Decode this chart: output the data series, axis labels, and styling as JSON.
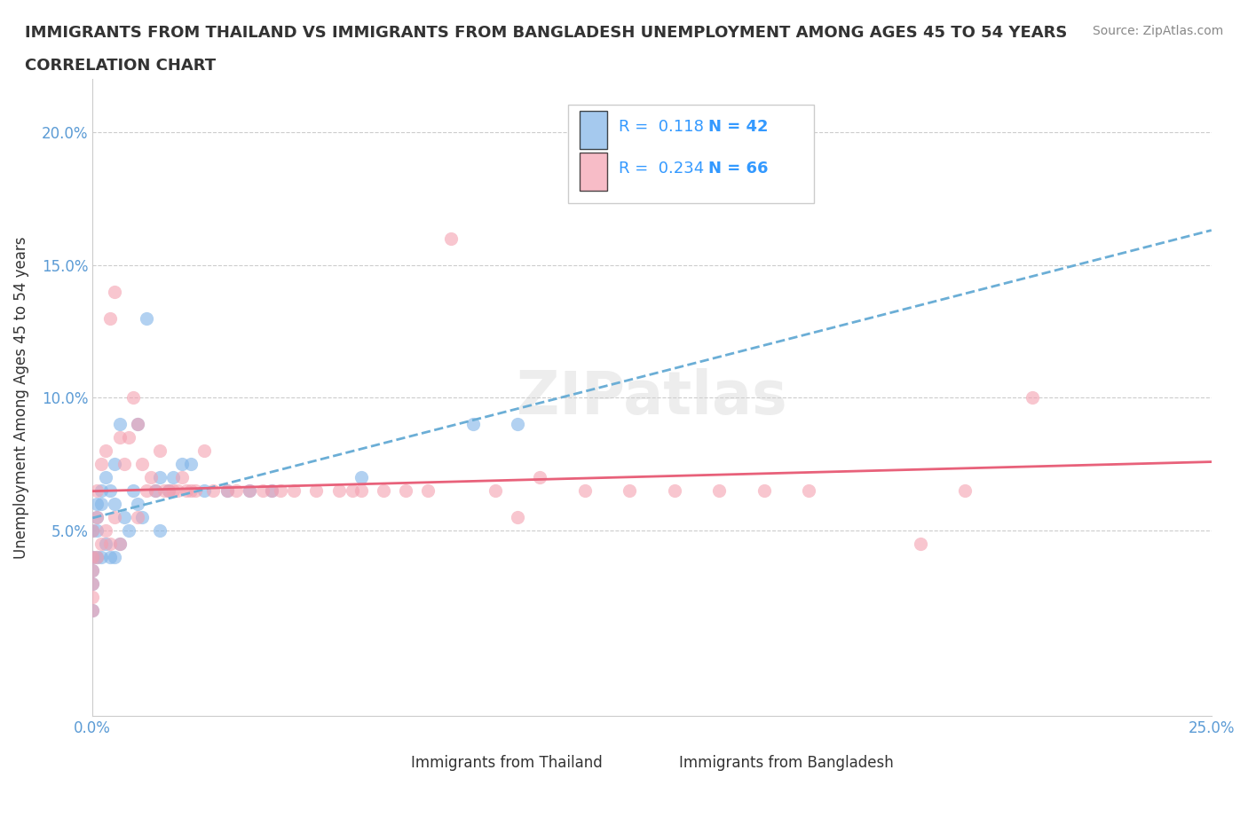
{
  "title_line1": "IMMIGRANTS FROM THAILAND VS IMMIGRANTS FROM BANGLADESH UNEMPLOYMENT AMONG AGES 45 TO 54 YEARS",
  "title_line2": "CORRELATION CHART",
  "source_text": "Source: ZipAtlas.com",
  "ylabel": "Unemployment Among Ages 45 to 54 years",
  "xlim": [
    0.0,
    0.25
  ],
  "ylim": [
    -0.02,
    0.22
  ],
  "xticks": [
    0.0,
    0.05,
    0.1,
    0.15,
    0.2,
    0.25
  ],
  "xticklabels": [
    "0.0%",
    "",
    "",
    "",
    "",
    "25.0%"
  ],
  "yticks": [
    0.0,
    0.05,
    0.1,
    0.15,
    0.2
  ],
  "yticklabels": [
    "",
    "5.0%",
    "10.0%",
    "15.0%",
    "20.0%"
  ],
  "grid_color": "#cccccc",
  "watermark": "ZIPatlas",
  "thailand_color": "#7fb3e8",
  "bangladesh_color": "#f4a0b0",
  "thailand_R": 0.118,
  "thailand_N": 42,
  "bangladesh_R": 0.234,
  "bangladesh_N": 66,
  "legend_R_color": "#3399ff",
  "legend_N_color": "#3399ff",
  "thailand_x": [
    0.0,
    0.0,
    0.0,
    0.0,
    0.0,
    0.001,
    0.001,
    0.001,
    0.001,
    0.002,
    0.002,
    0.002,
    0.003,
    0.003,
    0.004,
    0.004,
    0.005,
    0.005,
    0.005,
    0.006,
    0.006,
    0.007,
    0.008,
    0.009,
    0.01,
    0.01,
    0.011,
    0.012,
    0.014,
    0.015,
    0.015,
    0.017,
    0.018,
    0.02,
    0.022,
    0.025,
    0.03,
    0.035,
    0.04,
    0.06,
    0.085,
    0.095
  ],
  "thailand_y": [
    0.05,
    0.04,
    0.035,
    0.03,
    0.02,
    0.06,
    0.055,
    0.05,
    0.04,
    0.065,
    0.06,
    0.04,
    0.07,
    0.045,
    0.065,
    0.04,
    0.075,
    0.06,
    0.04,
    0.09,
    0.045,
    0.055,
    0.05,
    0.065,
    0.09,
    0.06,
    0.055,
    0.13,
    0.065,
    0.07,
    0.05,
    0.065,
    0.07,
    0.075,
    0.075,
    0.065,
    0.065,
    0.065,
    0.065,
    0.07,
    0.09,
    0.09
  ],
  "bangladesh_x": [
    0.0,
    0.0,
    0.0,
    0.0,
    0.0,
    0.0,
    0.001,
    0.001,
    0.001,
    0.002,
    0.002,
    0.003,
    0.003,
    0.004,
    0.004,
    0.005,
    0.005,
    0.006,
    0.006,
    0.007,
    0.008,
    0.009,
    0.01,
    0.01,
    0.011,
    0.012,
    0.013,
    0.014,
    0.015,
    0.016,
    0.017,
    0.018,
    0.019,
    0.02,
    0.021,
    0.022,
    0.023,
    0.025,
    0.027,
    0.03,
    0.032,
    0.035,
    0.038,
    0.04,
    0.042,
    0.045,
    0.05,
    0.055,
    0.058,
    0.06,
    0.065,
    0.07,
    0.075,
    0.08,
    0.09,
    0.095,
    0.1,
    0.11,
    0.12,
    0.13,
    0.14,
    0.15,
    0.16,
    0.185,
    0.195,
    0.21
  ],
  "bangladesh_y": [
    0.05,
    0.04,
    0.035,
    0.03,
    0.025,
    0.02,
    0.065,
    0.055,
    0.04,
    0.075,
    0.045,
    0.08,
    0.05,
    0.13,
    0.045,
    0.14,
    0.055,
    0.085,
    0.045,
    0.075,
    0.085,
    0.1,
    0.09,
    0.055,
    0.075,
    0.065,
    0.07,
    0.065,
    0.08,
    0.065,
    0.065,
    0.065,
    0.065,
    0.07,
    0.065,
    0.065,
    0.065,
    0.08,
    0.065,
    0.065,
    0.065,
    0.065,
    0.065,
    0.065,
    0.065,
    0.065,
    0.065,
    0.065,
    0.065,
    0.065,
    0.065,
    0.065,
    0.065,
    0.16,
    0.065,
    0.055,
    0.07,
    0.065,
    0.065,
    0.065,
    0.065,
    0.065,
    0.065,
    0.045,
    0.065,
    0.1
  ]
}
